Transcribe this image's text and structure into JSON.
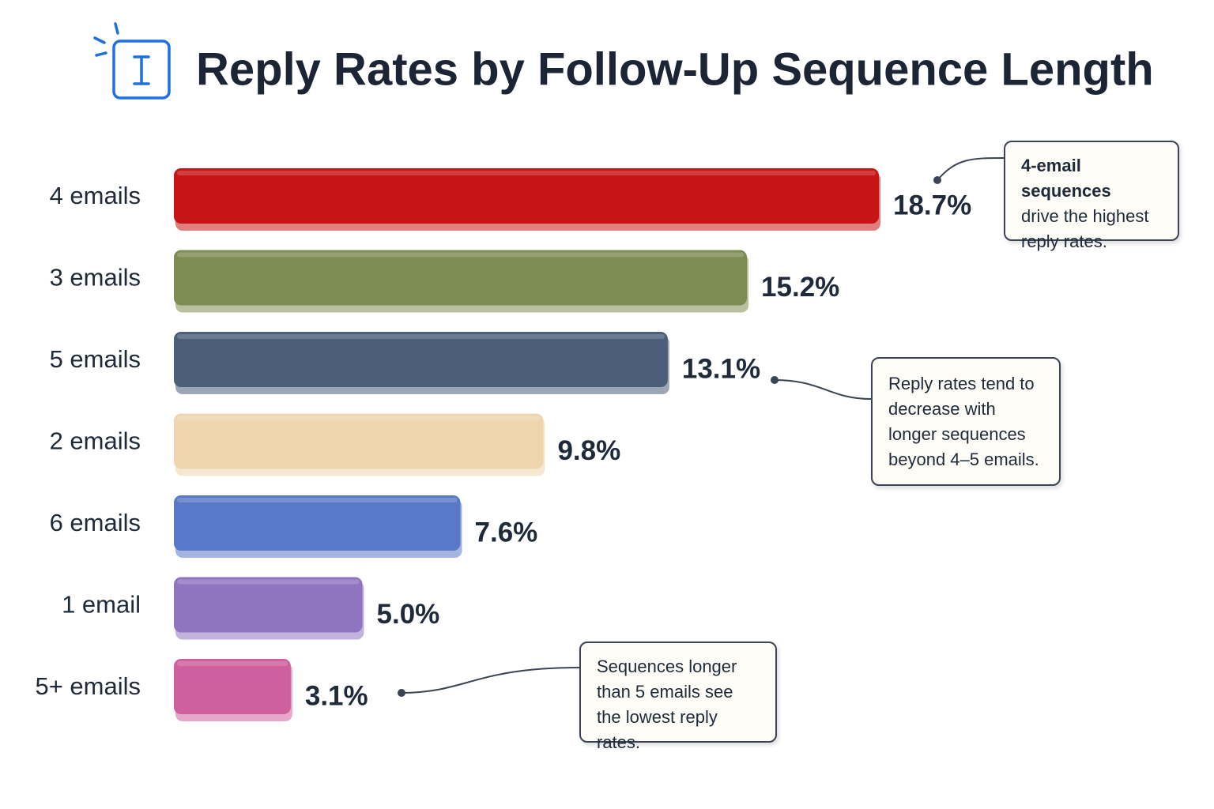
{
  "chart_data": {
    "type": "hbar",
    "title": "Reply Rates by Follow-Up Sequence Length",
    "categories": [
      "4 emails",
      "3 emails",
      "5 emails",
      "2 emails",
      "6 emails",
      "1 email",
      "5+ emails"
    ],
    "values": [
      18.7,
      15.2,
      13.1,
      9.8,
      7.6,
      5.0,
      3.1
    ],
    "value_labels": [
      "18.7%",
      "15.2%",
      "13.1%",
      "9.8%",
      "7.6%",
      "5.0%",
      "3.1%"
    ],
    "colors": [
      "#c81414",
      "#7d8c52",
      "#4b5f79",
      "#efd4ae",
      "#5a78c8",
      "#8f74c0",
      "#cf5f9e"
    ],
    "annotations": [
      {
        "title": "4-email sequences",
        "text": "drive the highest reply rates."
      },
      {
        "text": "Reply rates tend to decrease with longer sequences beyond 4–5 emails."
      },
      {
        "text": "Sequences longer than 5 emails see the lowest reply rates."
      }
    ]
  }
}
